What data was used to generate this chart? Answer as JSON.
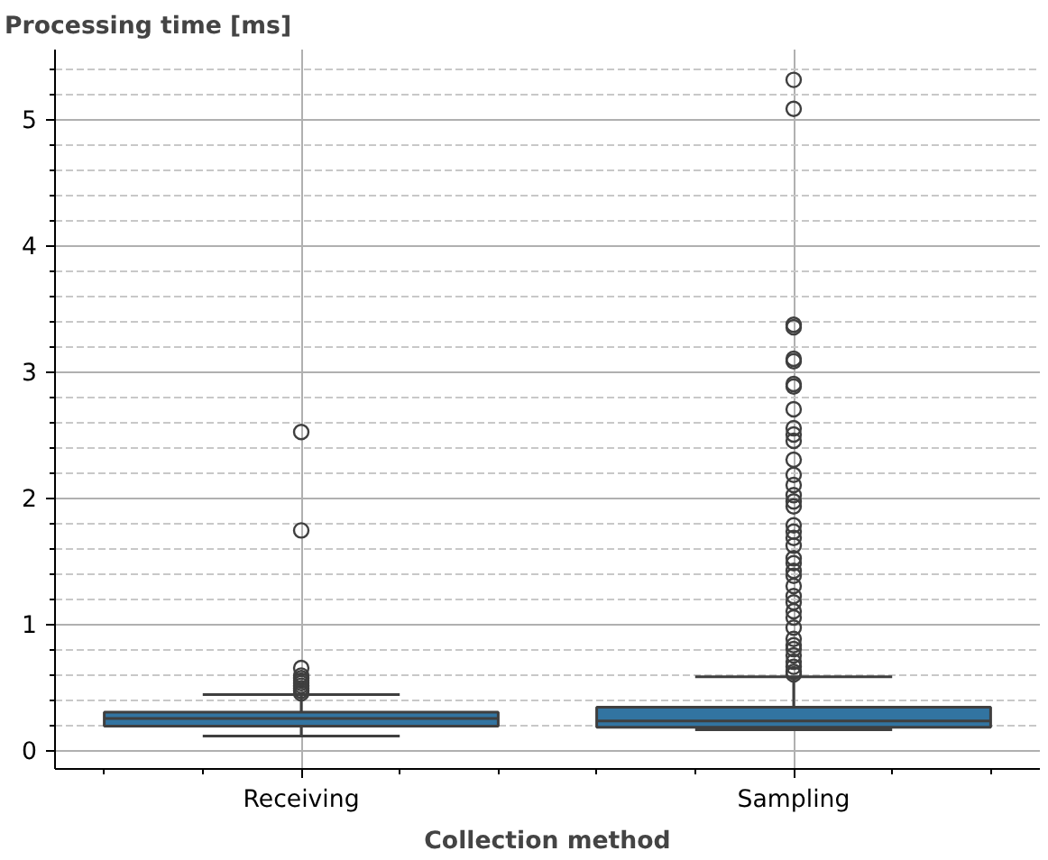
{
  "chart_data": {
    "type": "box",
    "xlabel": "Collection method",
    "ylabel": "Processing time [ms]",
    "categories": [
      "Receiving",
      "Sampling"
    ],
    "color": "#3274a1",
    "ylim": [
      -0.15,
      5.55
    ],
    "yticks": [
      0,
      {
        "value": 0.2,
        "label": null
      },
      {
        "value": 0.4,
        "label": null
      },
      {
        "value": 0.6,
        "label": null
      },
      {
        "value": 0.8,
        "label": null
      },
      1,
      {
        "value": 1.2,
        "label": null
      },
      {
        "value": 1.4,
        "label": null
      },
      {
        "value": 1.6,
        "label": null
      },
      {
        "value": 1.8,
        "label": null
      },
      2,
      {
        "value": 2.2,
        "label": null
      },
      {
        "value": 2.4,
        "label": null
      },
      {
        "value": 2.6,
        "label": null
      },
      {
        "value": 2.8,
        "label": null
      },
      3,
      {
        "value": 3.2,
        "label": null
      },
      {
        "value": 3.4,
        "label": null
      },
      {
        "value": 3.6,
        "label": null
      },
      {
        "value": 3.8,
        "label": null
      },
      4,
      {
        "value": 4.2,
        "label": null
      },
      {
        "value": 4.4,
        "label": null
      },
      {
        "value": 4.6,
        "label": null
      },
      {
        "value": 4.8,
        "label": null
      },
      5,
      {
        "value": 5.2,
        "label": null
      },
      {
        "value": 5.4,
        "label": null
      }
    ],
    "grid": true,
    "boxes": [
      {
        "low": 0.11,
        "q1": 0.19,
        "median": 0.25,
        "q3": 0.3,
        "high": 0.44,
        "outliers": [
          0.45,
          0.47,
          0.49,
          0.51,
          0.53,
          0.55,
          0.57,
          0.59,
          0.65,
          1.74,
          2.52
        ]
      },
      {
        "low": 0.16,
        "q1": 0.18,
        "median": 0.23,
        "q3": 0.34,
        "high": 0.58,
        "outliers": [
          0.6,
          0.62,
          0.66,
          0.7,
          0.75,
          0.8,
          0.83,
          0.88,
          0.97,
          1.05,
          1.1,
          1.17,
          1.22,
          1.3,
          1.38,
          1.42,
          1.48,
          1.52,
          1.62,
          1.68,
          1.73,
          1.78,
          1.93,
          1.97,
          2.02,
          2.1,
          2.18,
          2.3,
          2.45,
          2.5,
          2.55,
          2.7,
          2.88,
          2.9,
          3.08,
          3.1,
          3.35,
          3.37,
          5.08,
          5.31
        ]
      }
    ]
  }
}
